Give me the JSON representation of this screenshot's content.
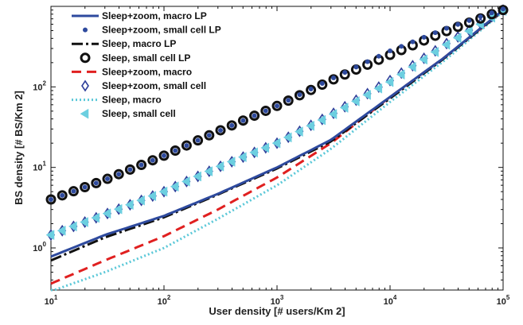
{
  "chart_data": {
    "type": "line",
    "xscale": "log",
    "yscale": "log",
    "xlim": [
      10,
      100000
    ],
    "ylim": [
      0.3,
      1000
    ],
    "xlabel": "User density [# users/Km 2]",
    "ylabel": "BS density [# BS/Km 2]",
    "x_ticks": [
      10,
      100,
      1000,
      10000,
      100000
    ],
    "x_tick_labels": [
      {
        "base": "10",
        "exp": "1"
      },
      {
        "base": "10",
        "exp": "2"
      },
      {
        "base": "10",
        "exp": "3"
      },
      {
        "base": "10",
        "exp": "4"
      },
      {
        "base": "10",
        "exp": "5"
      }
    ],
    "y_ticks": [
      1,
      10,
      100
    ],
    "y_tick_labels": [
      {
        "base": "10",
        "exp": "0"
      },
      {
        "base": "10",
        "exp": "1"
      },
      {
        "base": "10",
        "exp": "2"
      }
    ],
    "legend_position": "top-left",
    "series": [
      {
        "name": "Sleep+zoom, macro LP",
        "style": "line",
        "color": "#2e4a9e",
        "x": [
          10,
          30,
          100,
          300,
          1000,
          3000,
          10000,
          30000,
          100000
        ],
        "y": [
          0.78,
          1.45,
          2.5,
          4.7,
          10,
          22,
          75,
          230,
          900
        ]
      },
      {
        "name": "Sleep+zoom, small cell LP",
        "style": "marker",
        "marker": "dot",
        "color": "#2e4a9e",
        "x": [
          10,
          30,
          100,
          300,
          1000,
          3000,
          10000,
          30000,
          100000
        ],
        "y": [
          4,
          7,
          14,
          28,
          58,
          125,
          280,
          520,
          930
        ]
      },
      {
        "name": "Sleep, macro LP",
        "style": "dashdot",
        "color": "#111111",
        "x": [
          10,
          30,
          100,
          300,
          1000,
          3000,
          10000,
          30000,
          100000
        ],
        "y": [
          0.7,
          1.35,
          2.4,
          4.6,
          9.7,
          21,
          72,
          225,
          880
        ]
      },
      {
        "name": "Sleep, small cell LP",
        "style": "marker",
        "marker": "circle",
        "color": "#111111",
        "x": [
          10,
          30,
          100,
          300,
          1000,
          3000,
          10000,
          30000,
          100000
        ],
        "y": [
          4,
          7,
          14,
          28,
          58,
          120,
          250,
          480,
          900
        ]
      },
      {
        "name": "Sleep+zoom, macro",
        "style": "dashed",
        "color": "#e02020",
        "x": [
          10,
          30,
          100,
          300,
          1000,
          3000,
          10000,
          30000,
          100000
        ],
        "y": [
          0.36,
          0.7,
          1.4,
          3,
          7.5,
          20,
          75,
          230,
          880
        ]
      },
      {
        "name": "Sleep+zoom, small cell",
        "style": "marker",
        "marker": "diamond",
        "color": "#2e3f9a",
        "x": [
          10,
          30,
          100,
          300,
          1000,
          3000,
          10000,
          30000,
          100000
        ],
        "y": [
          1.45,
          2.6,
          5,
          10,
          20,
          45,
          120,
          330,
          900
        ]
      },
      {
        "name": "Sleep, macro",
        "style": "dotted",
        "color": "#5bc8d8",
        "x": [
          10,
          30,
          100,
          300,
          1000,
          3000,
          10000,
          30000,
          100000
        ],
        "y": [
          0.29,
          0.5,
          1,
          2.3,
          6,
          17,
          65,
          210,
          860
        ]
      },
      {
        "name": "Sleep, small cell",
        "style": "marker",
        "marker": "triangle",
        "color": "#6ccfe0",
        "x": [
          10,
          30,
          100,
          300,
          1000,
          3000,
          10000,
          30000,
          100000
        ],
        "y": [
          1.45,
          2.6,
          5,
          10,
          20,
          44,
          115,
          320,
          880
        ]
      }
    ]
  }
}
